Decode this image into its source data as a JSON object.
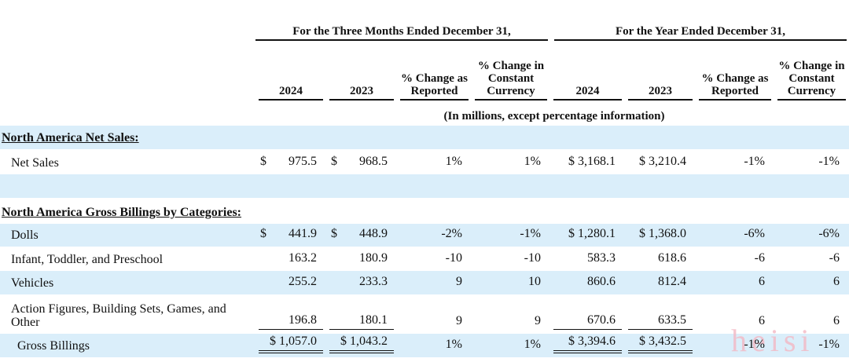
{
  "header": {
    "groups": [
      "For the Three Months Ended December 31,",
      "For the Year Ended December 31,"
    ],
    "columns": [
      "2024",
      "2023",
      "% Change as Reported",
      "% Change in Constant Currency",
      "2024",
      "2023",
      "% Change as Reported",
      "% Change in Constant Currency"
    ],
    "note": "(In millions, except percentage information)"
  },
  "table": {
    "rows": [
      {
        "label": "North America Net Sales:"
      },
      {
        "label": "Net Sales",
        "cells": [
          {
            "cur": "$",
            "val": "975.5"
          },
          {
            "cur": "$",
            "val": "968.5"
          },
          "1%",
          "1%",
          "$ 3,168.1",
          "$ 3,210.4",
          "-1%",
          "-1%"
        ]
      },
      {
        "label": "North America Gross Billings by Categories:"
      },
      {
        "label": "Dolls",
        "cells": [
          {
            "cur": "$",
            "val": "441.9"
          },
          {
            "cur": "$",
            "val": "448.9"
          },
          "-2%",
          "-1%",
          "$ 1,280.1",
          "$ 1,368.0",
          "-6%",
          "-6%"
        ]
      },
      {
        "label": "Infant, Toddler, and Preschool",
        "cells": [
          "163.2",
          "180.9",
          "-10",
          "-10",
          "583.3",
          "618.6",
          "-6",
          "-6"
        ]
      },
      {
        "label": "Vehicles",
        "cells": [
          "255.2",
          "233.3",
          "9",
          "10",
          "860.6",
          "812.4",
          "6",
          "6"
        ]
      },
      {
        "label": "Action Figures, Building Sets, Games, and Other",
        "cells": [
          "196.8",
          "180.1",
          "9",
          "9",
          "670.6",
          "633.5",
          "6",
          "6"
        ]
      },
      {
        "label": "Gross Billings",
        "cells": [
          "$ 1,057.0",
          "$ 1,043.2",
          "1%",
          "1%",
          "$ 3,394.6",
          "$ 3,432.5",
          "-1%",
          "-1%"
        ]
      }
    ]
  },
  "watermark": "heisi"
}
